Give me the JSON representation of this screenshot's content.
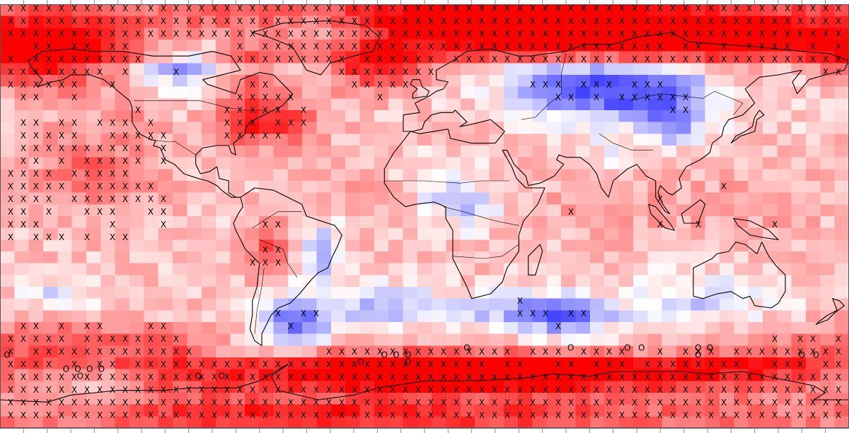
{
  "figure": {
    "colors": {
      "positive": "#ff0000",
      "negative": "#0000ff",
      "neutral": "#ffffff",
      "coastline": "#000000"
    },
    "color_scale": {
      "min": -1,
      "max": 1
    },
    "grid": {
      "cols": 59,
      "rows": 36,
      "lon_range": [
        -180,
        180
      ],
      "lat_range": [
        -90,
        90
      ]
    },
    "markers": {
      "x_symbol": "X",
      "o_symbol": "O",
      "o_points": [
        {
          "lon": -177,
          "lat": -59
        },
        {
          "lon": -152,
          "lat": -65
        },
        {
          "lon": -147,
          "lat": -65
        },
        {
          "lon": -142,
          "lat": -65
        },
        {
          "lon": -137,
          "lat": -65
        },
        {
          "lon": -146,
          "lat": -68
        },
        {
          "lon": -96,
          "lat": -68
        },
        {
          "lon": -86,
          "lat": -68
        },
        {
          "lon": -27,
          "lat": -62
        },
        {
          "lon": -17,
          "lat": -59
        },
        {
          "lon": -12,
          "lat": -59
        },
        {
          "lon": -7,
          "lat": -59
        },
        {
          "lon": -7,
          "lat": -62
        },
        {
          "lon": 18,
          "lat": -56
        },
        {
          "lon": 62,
          "lat": -56
        },
        {
          "lon": 86,
          "lat": -56
        },
        {
          "lon": 92,
          "lat": -56
        },
        {
          "lon": 116,
          "lat": -56
        },
        {
          "lon": 121,
          "lat": -56
        },
        {
          "lon": 116,
          "lat": -59
        },
        {
          "lon": 160,
          "lat": -59
        },
        {
          "lon": 166,
          "lat": -59
        }
      ]
    }
  }
}
